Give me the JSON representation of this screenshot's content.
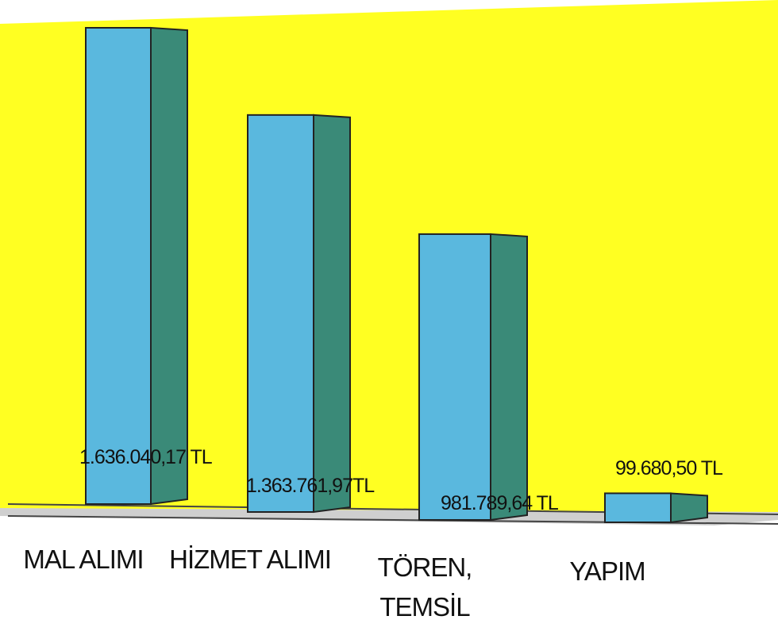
{
  "chart_data": {
    "type": "bar3d",
    "categories": [
      "MAL ALIMI",
      "HİZMET ALIMI",
      "TÖREN, TEMSİL",
      "YAPIM"
    ],
    "values": [
      1636040.17,
      1363761.97,
      981789.64,
      99680.5
    ],
    "value_labels": [
      "1.636.040,17 TL",
      "1.363.761,97TL",
      "981.789,64 TL",
      "99.680,50 TL"
    ],
    "color": "#5ab8de",
    "side_color": "#3a8a78",
    "background": "#ffff22"
  }
}
